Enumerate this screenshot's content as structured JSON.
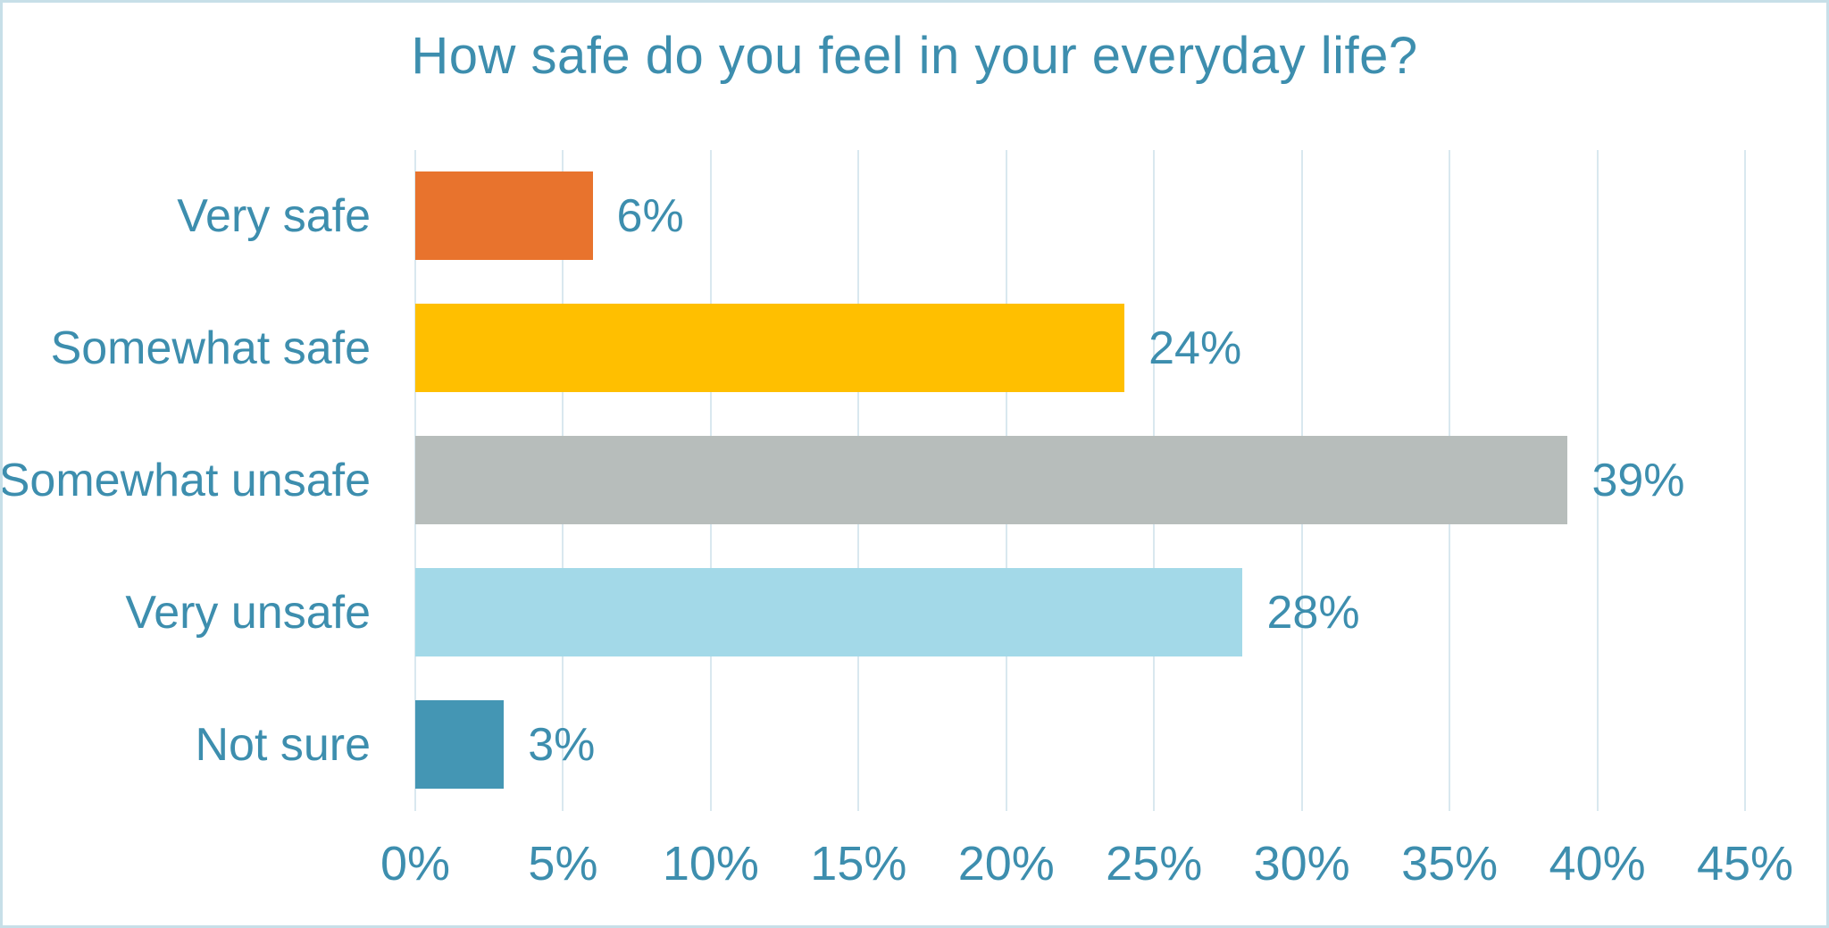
{
  "chart_data": {
    "type": "bar",
    "orientation": "horizontal",
    "title": "How safe do you feel in your everyday life?",
    "categories": [
      "Very safe",
      "Somewhat safe",
      "Somewhat unsafe",
      "Very unsafe",
      "Not sure"
    ],
    "values": [
      6,
      24,
      39,
      28,
      3
    ],
    "value_labels": [
      "6%",
      "24%",
      "39%",
      "28%",
      "3%"
    ],
    "bar_colors": [
      "#e8732d",
      "#ffbf00",
      "#b7bdbb",
      "#a3d9e8",
      "#4496b4"
    ],
    "xlim": [
      0,
      45
    ],
    "x_tick_values": [
      0,
      5,
      10,
      15,
      20,
      25,
      30,
      35,
      40,
      45
    ],
    "x_ticks": [
      "0%",
      "5%",
      "10%",
      "15%",
      "20%",
      "25%",
      "30%",
      "35%",
      "40%",
      "45%"
    ],
    "grid": true,
    "legend": false
  },
  "colors": {
    "text": "#3d8eae",
    "gridline": "#d9e8ef",
    "border": "#c7dfe8",
    "background": "#ffffff"
  }
}
